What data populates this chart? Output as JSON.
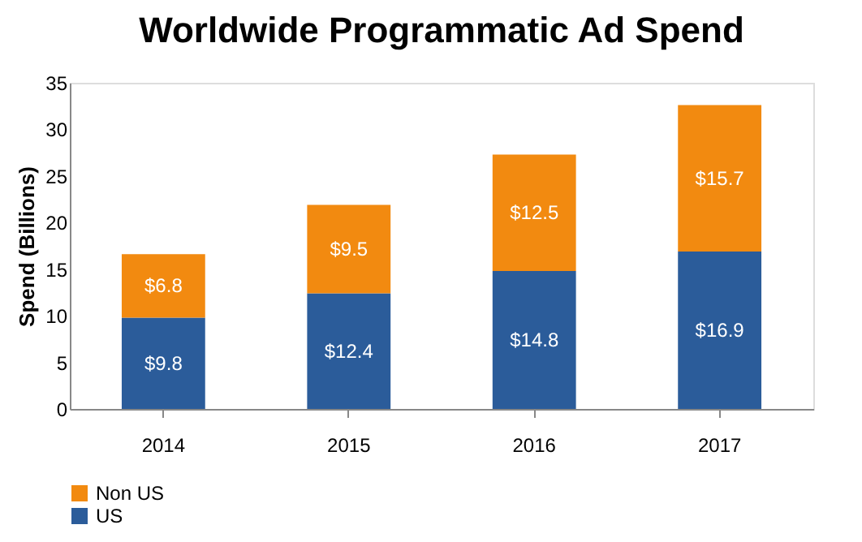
{
  "chart_data": {
    "type": "bar",
    "title": "Worldwide Programmatic Ad Spend",
    "ylabel": "Spend (Billions)",
    "categories": [
      "2014",
      "2015",
      "2016",
      "2017"
    ],
    "series": [
      {
        "name": "US",
        "color": "#2b5c9a",
        "values": [
          9.8,
          12.4,
          14.8,
          16.9
        ],
        "value_labels": [
          "$9.8",
          "$12.4",
          "$14.8",
          "$16.9"
        ]
      },
      {
        "name": "Non US",
        "color": "#f28a10",
        "values": [
          6.8,
          9.5,
          12.5,
          15.7
        ],
        "value_labels": [
          "$6.8",
          "$9.5",
          "$12.5",
          "$15.7"
        ]
      }
    ],
    "stacked": true,
    "ylim": [
      0,
      35
    ],
    "yticks": [
      0,
      5,
      10,
      15,
      20,
      25,
      30,
      35
    ],
    "grid": false,
    "legend": "bottom"
  }
}
